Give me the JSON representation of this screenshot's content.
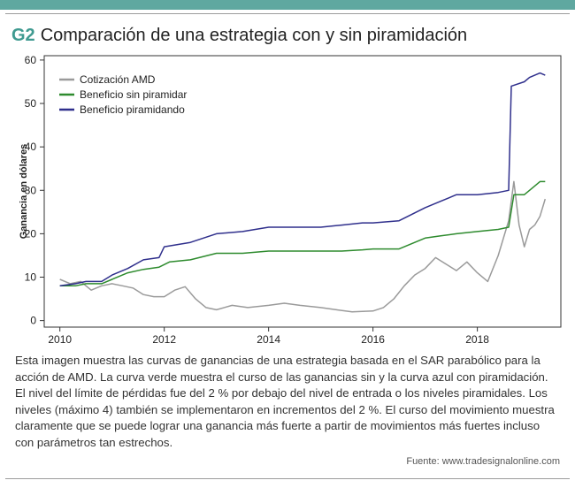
{
  "header": {
    "code": "G2",
    "title": "Comparación de una estrategia con y sin piramidación"
  },
  "colors": {
    "accent": "#3f9a90",
    "amd": "#9a9a9a",
    "sin_piramidar": "#2e8b2e",
    "piramidando": "#2f2f8c"
  },
  "chart_data": {
    "type": "line",
    "title": "",
    "xlabel": "",
    "ylabel": "Ganancia en dólares",
    "xlim": [
      2009.7,
      2019.6
    ],
    "ylim": [
      -1.5,
      61
    ],
    "xticks": [
      2010,
      2012,
      2014,
      2016,
      2018
    ],
    "yticks": [
      0,
      10,
      20,
      30,
      40,
      50,
      60
    ],
    "grid": false,
    "legend": "top-left",
    "series": [
      {
        "name": "Cotización AMD",
        "color": "#9a9a9a",
        "x": [
          2010.0,
          2010.2,
          2010.4,
          2010.6,
          2010.8,
          2011.0,
          2011.2,
          2011.4,
          2011.6,
          2011.8,
          2012.0,
          2012.2,
          2012.4,
          2012.6,
          2012.8,
          2013.0,
          2013.3,
          2013.6,
          2014.0,
          2014.3,
          2014.6,
          2015.0,
          2015.3,
          2015.6,
          2016.0,
          2016.2,
          2016.4,
          2016.6,
          2016.8,
          2017.0,
          2017.2,
          2017.4,
          2017.6,
          2017.8,
          2018.0,
          2018.2,
          2018.4,
          2018.6,
          2018.7,
          2018.8,
          2018.9,
          2019.0,
          2019.1,
          2019.2,
          2019.3
        ],
        "y": [
          9.5,
          8.5,
          9.0,
          7.0,
          8.0,
          8.5,
          8.0,
          7.5,
          6.0,
          5.5,
          5.5,
          7.0,
          7.8,
          5.0,
          3.0,
          2.5,
          3.5,
          3.0,
          3.5,
          4.0,
          3.5,
          3.0,
          2.5,
          2.0,
          2.2,
          3.0,
          5.0,
          8.0,
          10.5,
          12.0,
          14.5,
          13.0,
          11.5,
          13.5,
          11.0,
          9.0,
          15.0,
          23.0,
          32.0,
          22.0,
          17.0,
          21.0,
          22.0,
          24.0,
          28.0
        ]
      },
      {
        "name": "Beneficio sin piramidar",
        "color": "#2e8b2e",
        "x": [
          2010.0,
          2010.3,
          2010.5,
          2010.8,
          2011.0,
          2011.3,
          2011.6,
          2011.9,
          2012.1,
          2012.5,
          2013.0,
          2013.5,
          2014.0,
          2014.5,
          2015.0,
          2015.4,
          2015.8,
          2016.0,
          2016.5,
          2017.0,
          2017.3,
          2017.6,
          2018.0,
          2018.4,
          2018.6,
          2018.7,
          2018.9,
          2019.0,
          2019.2,
          2019.3
        ],
        "y": [
          8.0,
          8.0,
          8.5,
          8.5,
          9.5,
          11.0,
          11.8,
          12.3,
          13.5,
          14.0,
          15.5,
          15.5,
          16.0,
          16.0,
          16.0,
          16.0,
          16.3,
          16.5,
          16.5,
          19.0,
          19.5,
          20.0,
          20.5,
          21.0,
          21.5,
          29.0,
          29.0,
          30.0,
          32.0,
          32.0
        ]
      },
      {
        "name": "Beneficio piramidando",
        "color": "#2f2f8c",
        "x": [
          2010.0,
          2010.3,
          2010.5,
          2010.8,
          2011.0,
          2011.3,
          2011.6,
          2011.9,
          2012.0,
          2012.5,
          2013.0,
          2013.5,
          2014.0,
          2014.5,
          2015.0,
          2015.4,
          2015.8,
          2016.0,
          2016.5,
          2017.0,
          2017.3,
          2017.6,
          2018.0,
          2018.4,
          2018.6,
          2018.65,
          2018.9,
          2019.0,
          2019.2,
          2019.3
        ],
        "y": [
          8.0,
          8.5,
          9.0,
          9.0,
          10.5,
          12.0,
          14.0,
          14.5,
          17.0,
          18.0,
          20.0,
          20.5,
          21.5,
          21.5,
          21.5,
          22.0,
          22.5,
          22.5,
          23.0,
          26.0,
          27.5,
          29.0,
          29.0,
          29.5,
          30.0,
          54.0,
          55.0,
          56.0,
          57.0,
          56.5
        ]
      }
    ]
  },
  "caption": "Esta imagen muestra las curvas de ganancias de una estrategia basada en el SAR parabólico para la acción de AMD. La curva verde muestra el curso de las ganancias sin y la curva azul con piramidación. El nivel del límite de pérdidas fue del 2 % por debajo del nivel de entrada o los niveles piramidales. Los niveles (máximo 4) también se implementaron en incrementos del 2 %. El curso del movimiento muestra claramente que se puede lograr una ganancia más fuerte a partir de movimientos más fuertes incluso con parámetros tan estrechos.",
  "source": "Fuente: www.tradesignalonline.com"
}
